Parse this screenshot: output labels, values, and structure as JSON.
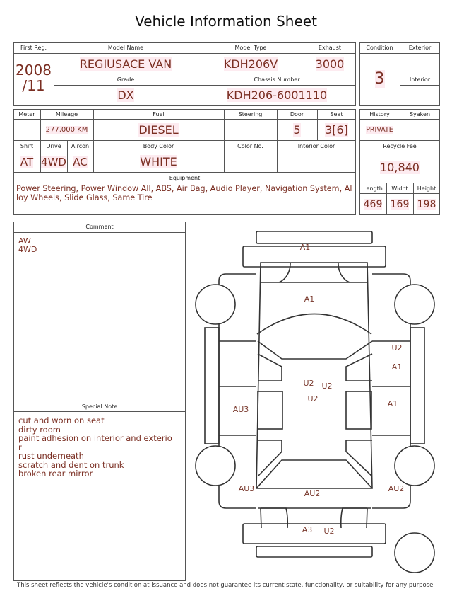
{
  "title": "Vehicle Information Sheet",
  "labels": {
    "first_reg": "First Reg.",
    "model_name": "Model Name",
    "model_type": "Model Type",
    "exhaust": "Exhaust",
    "condition": "Condition",
    "exterior": "Exterior",
    "grade": "Grade",
    "chassis_number": "Chassis Number",
    "interior": "Interior",
    "meter": "Meter",
    "mileage": "Mileage",
    "fuel": "Fuel",
    "steering": "Steering",
    "door": "Door",
    "seat": "Seat",
    "history": "History",
    "syaken": "Syaken",
    "shift": "Shift",
    "drive": "Drive",
    "aircon": "Aircon",
    "body_color": "Body Color",
    "color_no": "Color No.",
    "interior_color": "Interior Color",
    "recycle_fee": "Recycle Fee",
    "equipment": "Equipment",
    "length": "Length",
    "width": "Widht",
    "height": "Height",
    "comment": "Comment",
    "special_note": "Special Note"
  },
  "values": {
    "first_reg_year": "2008",
    "first_reg_month": "/11",
    "model_name": "REGIUSACE VAN",
    "model_type": "KDH206V",
    "exhaust": "3000",
    "condition": "3",
    "exterior": "",
    "interior": "",
    "grade": "DX",
    "chassis_number": "KDH206-6001110",
    "meter": "",
    "mileage": "277,000 KM",
    "fuel": "DIESEL",
    "steering": "",
    "door": "5",
    "seat": "3[6]",
    "history": "PRIVATE",
    "syaken": "",
    "shift": "AT",
    "drive": "4WD",
    "aircon": "AC",
    "body_color": "WHITE",
    "color_no": "",
    "interior_color": "",
    "recycle_fee": "10,840",
    "equipment": "Power Steering, Power Window  All, ABS, Air Bag, Audio Player, Navigation System, Alloy Wheels, Slide Glass, Same Tire",
    "length": "469",
    "width": "169",
    "height": "198"
  },
  "comment": [
    "AW",
    "4WD"
  ],
  "special_note": [
    "cut and worn on seat",
    "dirty room",
    "paint adhesion on interior and exterio",
    "r",
    "rust underneath",
    "scratch and dent on trunk",
    "broken rear mirror"
  ],
  "damage_marks": [
    "A1",
    "A1",
    "U2",
    "A1",
    "A1",
    "U2",
    "U2",
    "U2",
    "AU3",
    "AU3",
    "AU2",
    "AU2",
    "A3",
    "U2"
  ],
  "footer": "This sheet reflects the vehicle's condition at issuance and does not guarantee its current state, functionality, or suitability for any purpose"
}
